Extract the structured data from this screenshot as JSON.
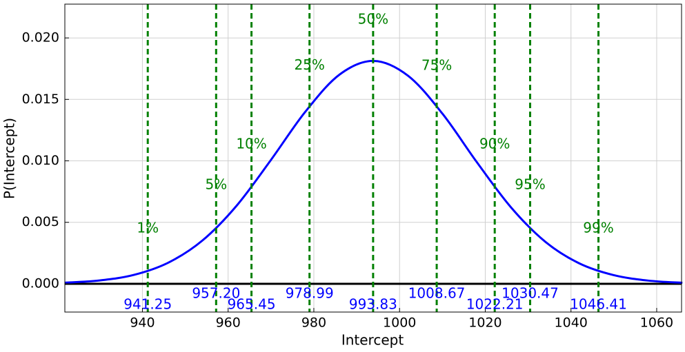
{
  "chart_data": {
    "type": "line",
    "x_label": "Intercept",
    "y_label": "P(Intercept)",
    "x": [
      922,
      930,
      938,
      946,
      954,
      962,
      970,
      978,
      986,
      994,
      1002,
      1010,
      1018,
      1026,
      1034,
      1042,
      1050,
      1058,
      1066
    ],
    "series": [
      {
        "color": "#0000ff",
        "values": [
          9e-05,
          0.00027,
          0.00072,
          0.00171,
          0.00352,
          0.00636,
          0.01008,
          0.01399,
          0.01702,
          0.01813,
          0.01692,
          0.01384,
          0.00991,
          0.00622,
          0.00342,
          0.00165,
          0.0007,
          0.00026,
          8e-05
        ]
      }
    ],
    "percentiles": {
      "values": [
        1,
        5,
        10,
        25,
        50,
        75,
        90,
        95,
        99
      ],
      "value_labels": [
        "1%",
        "5%",
        "10%",
        "25%",
        "50%",
        "75%",
        "90%",
        "95%",
        "99%"
      ]
    },
    "quantiles": {
      "values": [
        941.25,
        957.2,
        965.45,
        978.99,
        993.83,
        1008.67,
        1022.21,
        1030.47,
        1046.41
      ],
      "value_labels": [
        "941.25",
        "957.20",
        "965.45",
        "978.99",
        "993.83",
        "1008.67",
        "1022.21",
        "1030.47",
        "1046.41"
      ]
    },
    "quantile_color": "#008000",
    "quantile_label_color": "#0000ff",
    "xlim": [
      921.9,
      1065.8
    ],
    "ylim": [
      -0.0023,
      0.02275
    ],
    "xticks": [
      940,
      960,
      980,
      1000,
      1020,
      1040,
      1060
    ],
    "yticks": [
      {
        "value": 0,
        "label": "0.000"
      },
      {
        "value": 0.005,
        "label": "0.005"
      },
      {
        "value": 0.01,
        "label": "0.010"
      },
      {
        "value": 0.015,
        "label": "0.015"
      },
      {
        "value": 0.02,
        "label": "0.020"
      }
    ],
    "grid": true
  }
}
